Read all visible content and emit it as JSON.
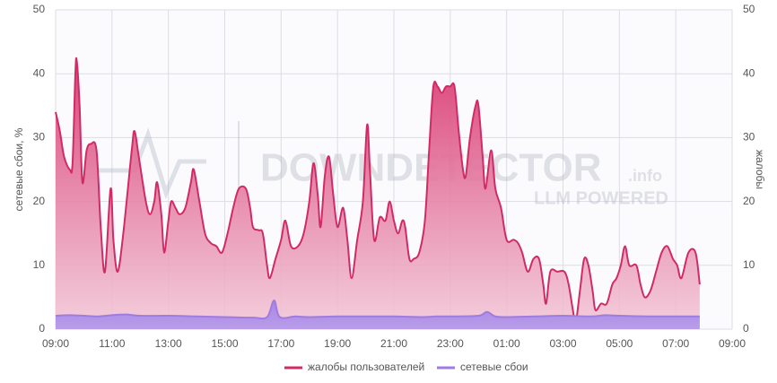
{
  "chart_data": {
    "type": "area",
    "y_label": "сетевые сбои, %",
    "y2_label": "жалобы",
    "watermark": [
      "DOWNDETECTOR",
      ".info",
      "LLM POWERED"
    ],
    "xlim": [
      0,
      24
    ],
    "xticks": [
      {
        "value": 0,
        "label": "09:00"
      },
      {
        "value": 2,
        "label": "11:00"
      },
      {
        "value": 4,
        "label": "13:00"
      },
      {
        "value": 6,
        "label": "15:00"
      },
      {
        "value": 8,
        "label": "17:00"
      },
      {
        "value": 10,
        "label": "19:00"
      },
      {
        "value": 12,
        "label": "21:00"
      },
      {
        "value": 14,
        "label": "23:00"
      },
      {
        "value": 16,
        "label": "01:00"
      },
      {
        "value": 18,
        "label": "03:00"
      },
      {
        "value": 20,
        "label": "05:00"
      },
      {
        "value": 22,
        "label": "07:00"
      },
      {
        "value": 24,
        "label": "09:00"
      }
    ],
    "ylim": [
      0,
      50
    ],
    "yticks": [
      0,
      10,
      20,
      30,
      40,
      50
    ],
    "y2lim": [
      0,
      50
    ],
    "y2ticks": [
      0,
      10,
      20,
      30,
      40,
      50
    ],
    "grid": true,
    "legend": "bottom",
    "series": [
      {
        "name": "жалобы пользователей",
        "color": "#d12b65",
        "axis": "y2",
        "x": [
          0,
          0.15,
          0.3,
          0.5,
          0.6,
          0.7,
          0.75,
          0.85,
          0.95,
          1.1,
          1.25,
          1.45,
          1.6,
          1.75,
          1.95,
          2.05,
          2.2,
          2.4,
          2.7,
          2.8,
          2.95,
          3.2,
          3.35,
          3.5,
          3.6,
          3.75,
          3.85,
          4,
          4.1,
          4.25,
          4.4,
          4.6,
          4.8,
          4.9,
          5.1,
          5.3,
          5.5,
          5.7,
          5.9,
          6.1,
          6.3,
          6.5,
          6.75,
          6.9,
          7,
          7.2,
          7.35,
          7.5,
          7.6,
          7.8,
          8,
          8.15,
          8.35,
          8.6,
          8.8,
          9,
          9.15,
          9.3,
          9.4,
          9.55,
          9.7,
          9.85,
          10,
          10.2,
          10.35,
          10.5,
          10.7,
          10.9,
          11.05,
          11.15,
          11.3,
          11.5,
          11.7,
          11.85,
          12,
          12.15,
          12.3,
          12.4,
          12.55,
          12.7,
          12.9,
          13.1,
          13.25,
          13.4,
          13.55,
          13.7,
          13.85,
          14,
          14.15,
          14.3,
          14.45,
          14.55,
          14.7,
          14.9,
          15,
          15.15,
          15.25,
          15.45,
          15.6,
          15.8,
          16,
          16.25,
          16.4,
          16.55,
          16.75,
          16.95,
          17.15,
          17.3,
          17.4,
          17.55,
          17.8,
          18.05,
          18.2,
          18.35,
          18.45,
          18.6,
          18.75,
          18.9,
          19.05,
          19.15,
          19.35,
          19.55,
          19.75,
          19.9,
          20.05,
          20.2,
          20.35,
          20.6,
          20.75,
          20.9,
          21.1,
          21.3,
          21.5,
          21.7,
          21.9,
          22.05,
          22.2,
          22.45,
          22.7,
          22.85
        ],
        "values": [
          34,
          31,
          27,
          25,
          26,
          40,
          42,
          35,
          23,
          28,
          29,
          28,
          16,
          9,
          22,
          14,
          9,
          15,
          28,
          31,
          27,
          20,
          18,
          20,
          23,
          18,
          12,
          17,
          20,
          19,
          18,
          19,
          23,
          25,
          20,
          15,
          13.5,
          13,
          12,
          15,
          19,
          22,
          22,
          19,
          16,
          15.5,
          15,
          10,
          8,
          11,
          14,
          17,
          13,
          13,
          15,
          20,
          26,
          21,
          16,
          24,
          27,
          21,
          16,
          19,
          14,
          8,
          14,
          20,
          32,
          25,
          14,
          17.5,
          17,
          20,
          17,
          15,
          17,
          16,
          11,
          11,
          12,
          17,
          28,
          38,
          38,
          37,
          38,
          38,
          38,
          31,
          25,
          24,
          30,
          35,
          35,
          27,
          22,
          28,
          22,
          19,
          14,
          14,
          13.5,
          12,
          9,
          11,
          11,
          7,
          4,
          9,
          9,
          9,
          7,
          3,
          1,
          6,
          11,
          10,
          6,
          3,
          4,
          4,
          7,
          8,
          10,
          13,
          10,
          10,
          7,
          5,
          6,
          9,
          12,
          13,
          11,
          10,
          8,
          12,
          12,
          7
        ]
      },
      {
        "name": "сетевые сбои",
        "color": "#a07be0",
        "axis": "y",
        "x": [
          0,
          0.5,
          1,
          1.5,
          2,
          2.5,
          3,
          4,
          5,
          6,
          7,
          7.5,
          7.75,
          7.95,
          8.5,
          9,
          10,
          11,
          12,
          13,
          13.5,
          14,
          15,
          15.3,
          15.6,
          16,
          17,
          18,
          19,
          19.5,
          20,
          21,
          22,
          22.85
        ],
        "values": [
          2.1,
          2.2,
          2.1,
          2,
          2.2,
          2.3,
          2.1,
          2.1,
          2,
          1.9,
          1.8,
          1.9,
          4.5,
          1.9,
          2,
          1.9,
          2,
          2,
          2,
          1.9,
          2,
          2,
          2.1,
          2.7,
          2,
          1.9,
          2,
          2.1,
          2,
          2.2,
          2.1,
          2,
          2,
          2
        ]
      }
    ]
  }
}
